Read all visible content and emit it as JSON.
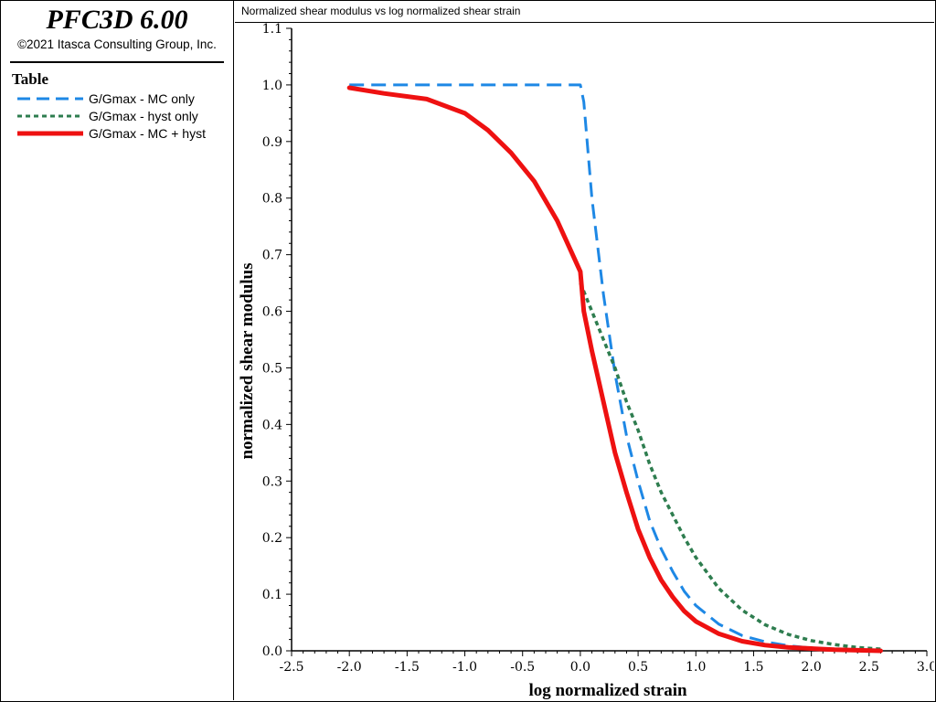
{
  "app": {
    "title": "PFC3D 6.00",
    "copyright": "©2021 Itasca Consulting Group, Inc."
  },
  "legend": {
    "heading": "Table",
    "items": [
      {
        "label": "G/Gmax - MC only",
        "color": "#1e88e5",
        "style": "dashed"
      },
      {
        "label": "G/Gmax - hyst only",
        "color": "#2e7d4f",
        "style": "dotted"
      },
      {
        "label": "G/Gmax - MC + hyst",
        "color": "#ee1111",
        "style": "solid"
      }
    ]
  },
  "plot": {
    "title": "Normalized shear modulus vs log normalized shear strain"
  },
  "chart_data": {
    "type": "line",
    "title": "Normalized shear modulus vs log normalized shear strain",
    "xlabel": "log normalized strain",
    "ylabel": "normalized shear modulus",
    "xlim": [
      -2.5,
      3.0
    ],
    "ylim": [
      0.0,
      1.1
    ],
    "xticks": [
      "-2.5",
      "-2.0",
      "-1.5",
      "-1.0",
      "-0.5",
      "0.0",
      "0.5",
      "1.0",
      "1.5",
      "2.0",
      "2.5",
      "3.0"
    ],
    "yticks": [
      "0.0",
      "0.1",
      "0.2",
      "0.3",
      "0.4",
      "0.5",
      "0.6",
      "0.7",
      "0.8",
      "0.9",
      "1.0",
      "1.1"
    ],
    "grid": false,
    "legend_position": "left-panel",
    "series": [
      {
        "name": "G/Gmax - MC only",
        "color": "#1e88e5",
        "style": "dashed",
        "x": [
          -2.0,
          -1.5,
          -1.0,
          -0.5,
          0.0,
          0.03,
          0.1,
          0.2,
          0.3,
          0.4,
          0.5,
          0.6,
          0.7,
          0.8,
          0.9,
          1.0,
          1.2,
          1.4,
          1.6,
          1.8,
          2.0,
          2.2,
          2.4,
          2.6
        ],
        "y": [
          1.0,
          1.0,
          1.0,
          1.0,
          1.0,
          0.97,
          0.8,
          0.63,
          0.49,
          0.38,
          0.3,
          0.23,
          0.18,
          0.14,
          0.105,
          0.08,
          0.047,
          0.027,
          0.016,
          0.009,
          0.005,
          0.003,
          0.002,
          0.001
        ]
      },
      {
        "name": "G/Gmax - hyst only",
        "color": "#2e7d4f",
        "style": "dotted",
        "x": [
          0.0,
          0.1,
          0.2,
          0.3,
          0.4,
          0.5,
          0.6,
          0.7,
          0.8,
          0.9,
          1.0,
          1.2,
          1.4,
          1.6,
          1.8,
          2.0,
          2.2,
          2.4,
          2.6
        ],
        "y": [
          0.65,
          0.6,
          0.55,
          0.5,
          0.44,
          0.39,
          0.33,
          0.28,
          0.24,
          0.2,
          0.165,
          0.11,
          0.072,
          0.046,
          0.029,
          0.018,
          0.011,
          0.006,
          0.003
        ]
      },
      {
        "name": "G/Gmax - MC + hyst",
        "color": "#ee1111",
        "style": "solid",
        "x": [
          -2.0,
          -1.7,
          -1.33,
          -1.0,
          -0.8,
          -0.6,
          -0.4,
          -0.2,
          0.0,
          0.03,
          0.1,
          0.2,
          0.3,
          0.4,
          0.5,
          0.6,
          0.7,
          0.8,
          0.9,
          1.0,
          1.2,
          1.4,
          1.6,
          1.8,
          2.0,
          2.2,
          2.4,
          2.6
        ],
        "y": [
          0.995,
          0.985,
          0.975,
          0.95,
          0.92,
          0.88,
          0.83,
          0.76,
          0.67,
          0.6,
          0.53,
          0.44,
          0.35,
          0.28,
          0.215,
          0.165,
          0.125,
          0.095,
          0.07,
          0.052,
          0.03,
          0.017,
          0.01,
          0.006,
          0.004,
          0.002,
          0.001,
          0.0
        ]
      }
    ]
  }
}
